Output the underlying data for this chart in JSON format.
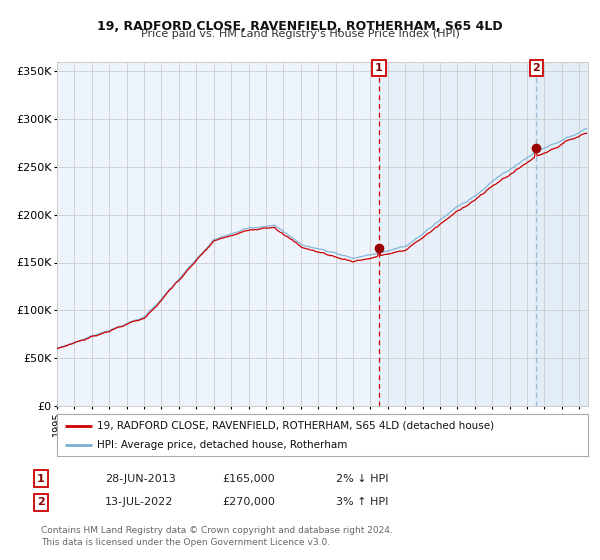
{
  "title": "19, RADFORD CLOSE, RAVENFIELD, ROTHERHAM, S65 4LD",
  "subtitle": "Price paid vs. HM Land Registry's House Price Index (HPI)",
  "ylim": [
    0,
    360000
  ],
  "yticks": [
    0,
    50000,
    100000,
    150000,
    200000,
    250000,
    300000,
    350000
  ],
  "ytick_labels": [
    "£0",
    "£50K",
    "£100K",
    "£150K",
    "£200K",
    "£250K",
    "£300K",
    "£350K"
  ],
  "line_color_red": "#cc0000",
  "line_color_blue": "#7ab0d4",
  "fill_color": "#cce0f0",
  "grid_color": "#cccccc",
  "background_color": "#ffffff",
  "plot_bg_color": "#eef4fb",
  "marker_color": "#990000",
  "sale1_date_num": 2013.49,
  "sale1_price": 165000,
  "sale1_label": "1",
  "sale2_date_num": 2022.53,
  "sale2_price": 270000,
  "sale2_label": "2",
  "legend_line1": "19, RADFORD CLOSE, RAVENFIELD, ROTHERHAM, S65 4LD (detached house)",
  "legend_line2": "HPI: Average price, detached house, Rotherham",
  "table_row1": [
    "1",
    "28-JUN-2013",
    "£165,000",
    "2% ↓ HPI"
  ],
  "table_row2": [
    "2",
    "13-JUL-2022",
    "£270,000",
    "3% ↑ HPI"
  ],
  "footer": "Contains HM Land Registry data © Crown copyright and database right 2024.\nThis data is licensed under the Open Government Licence v3.0.",
  "xmin": 1995.0,
  "xmax": 2025.5
}
